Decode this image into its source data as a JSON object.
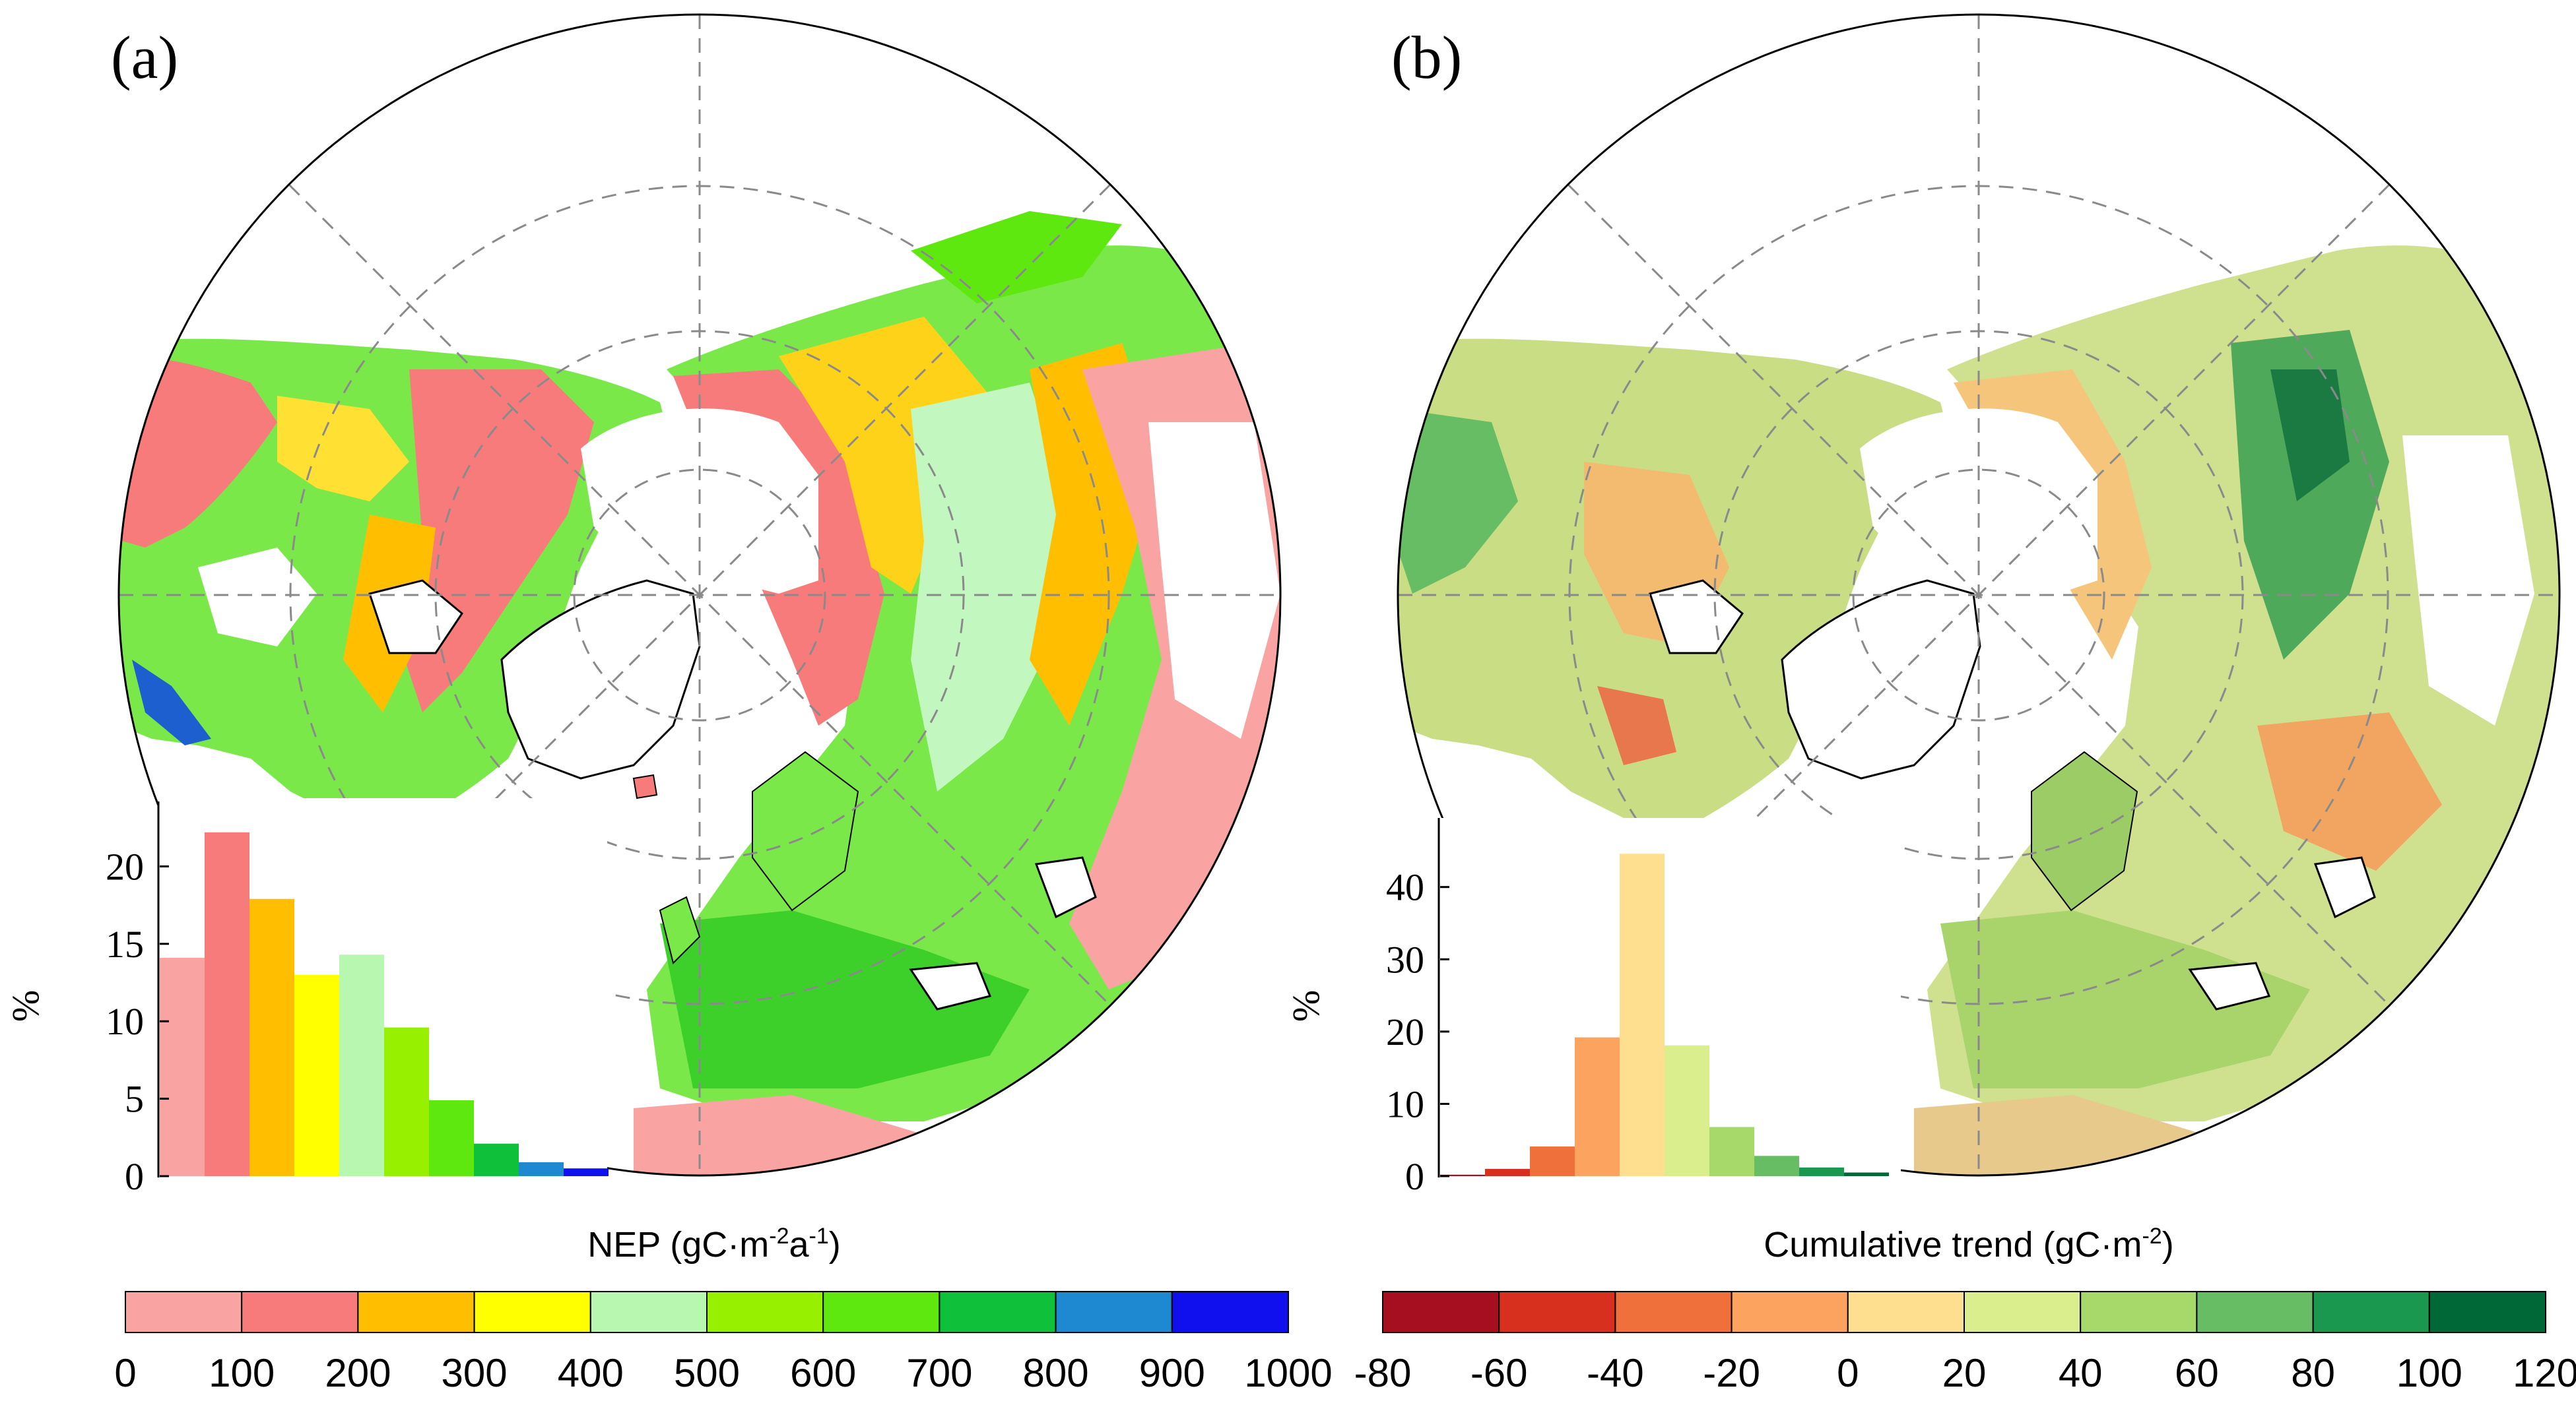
{
  "chart_data": [
    {
      "panel_label": "(a)",
      "type": "bar",
      "title": "",
      "xlabel": "",
      "ylabel": "%",
      "ylim": [
        0,
        23
      ],
      "yticks": [
        "0",
        "5",
        "10",
        "15",
        "20"
      ],
      "categories": [
        "0-100",
        "100-200",
        "200-300",
        "300-400",
        "400-500",
        "500-600",
        "600-700",
        "700-800",
        "800-900",
        "900-1000"
      ],
      "values": [
        14.1,
        22.2,
        17.9,
        13.0,
        14.3,
        9.6,
        4.9,
        2.1,
        0.9,
        0.5
      ],
      "colors": [
        "#f9a3a3",
        "#f77b7b",
        "#ffbf00",
        "#ffff00",
        "#b7f7b0",
        "#96f000",
        "#5fe80f",
        "#0fc03a",
        "#1e88d0",
        "#1010ee"
      ],
      "colorbar": {
        "label_main": "NEP (gC·m",
        "label_exp1": "-2",
        "label_mid": "a",
        "label_exp2": "-1",
        "label_end": ")",
        "ticks": [
          "0",
          "100",
          "200",
          "300",
          "400",
          "500",
          "600",
          "700",
          "800",
          "900",
          "1000"
        ],
        "colors": [
          "#f9a3a3",
          "#f77b7b",
          "#ffbf00",
          "#ffff00",
          "#b7f7b0",
          "#96f000",
          "#5fe80f",
          "#0fc03a",
          "#1e88d0",
          "#1010ee"
        ]
      }
    },
    {
      "panel_label": "(b)",
      "type": "bar",
      "title": "",
      "xlabel": "",
      "ylabel": "%",
      "ylim": [
        0,
        47
      ],
      "yticks": [
        "0",
        "10",
        "20",
        "30",
        "40"
      ],
      "categories": [
        "-80--60",
        "-60--40",
        "-40--20",
        "-20-0",
        "0-20",
        "20-40",
        "40-60",
        "60-80",
        "80-100",
        "100-120"
      ],
      "values": [
        0.2,
        1.0,
        4.1,
        19.2,
        44.6,
        18.1,
        6.8,
        2.8,
        1.2,
        0.5
      ],
      "colors": [
        "#a50f1f",
        "#d7301f",
        "#f0703c",
        "#fba35f",
        "#fddf8f",
        "#dbee8e",
        "#a6d96a",
        "#66bd63",
        "#1a9850",
        "#006837"
      ],
      "colorbar": {
        "label_main": "Cumulative trend (gC·m",
        "label_exp1": "-2",
        "label_end": ")",
        "ticks": [
          "-80",
          "-60",
          "-40",
          "-20",
          "0",
          "20",
          "40",
          "60",
          "80",
          "100",
          "120"
        ],
        "colors": [
          "#a50f1f",
          "#d7301f",
          "#f0703c",
          "#fba35f",
          "#fddf8f",
          "#dbee8e",
          "#a6d96a",
          "#66bd63",
          "#1a9850",
          "#006837"
        ]
      }
    }
  ]
}
